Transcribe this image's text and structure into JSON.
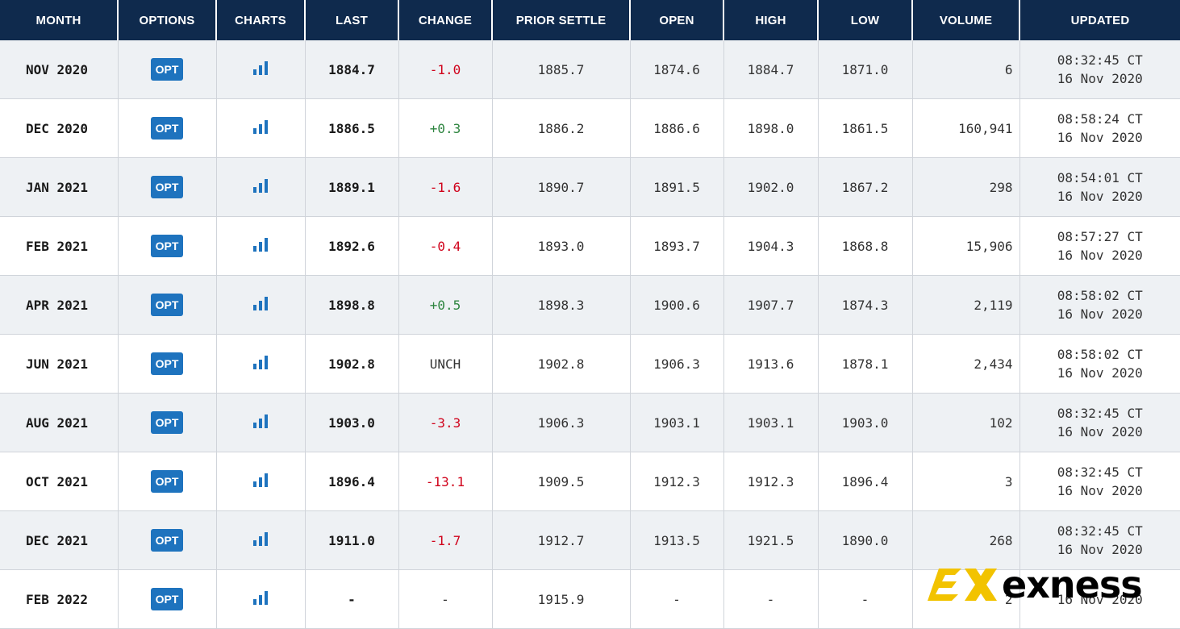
{
  "headers": {
    "month": "MONTH",
    "options": "OPTIONS",
    "charts": "CHARTS",
    "last": "LAST",
    "change": "CHANGE",
    "prior_settle": "PRIOR SETTLE",
    "open": "OPEN",
    "high": "HIGH",
    "low": "LOW",
    "volume": "VOLUME",
    "updated": "UPDATED"
  },
  "colors": {
    "header_bg": "#0f2a4d",
    "button": "#1e73be",
    "negative": "#d0021b",
    "positive": "#2e8540",
    "logo_accent": "#f2c300"
  },
  "icons": {
    "chart": "bar-chart-icon",
    "logo": "exness-logo"
  },
  "rows": [
    {
      "month": "NOV 2020",
      "opt": "OPT",
      "last": "1884.7",
      "change": "-1.0",
      "change_dir": "neg",
      "prior": "1885.7",
      "open": "1874.6",
      "high": "1884.7",
      "low": "1871.0",
      "volume": "6",
      "time": "08:32:45 CT",
      "date": "16 Nov 2020"
    },
    {
      "month": "DEC 2020",
      "opt": "OPT",
      "last": "1886.5",
      "change": "+0.3",
      "change_dir": "pos",
      "prior": "1886.2",
      "open": "1886.6",
      "high": "1898.0",
      "low": "1861.5",
      "volume": "160,941",
      "time": "08:58:24 CT",
      "date": "16 Nov 2020"
    },
    {
      "month": "JAN 2021",
      "opt": "OPT",
      "last": "1889.1",
      "change": "-1.6",
      "change_dir": "neg",
      "prior": "1890.7",
      "open": "1891.5",
      "high": "1902.0",
      "low": "1867.2",
      "volume": "298",
      "time": "08:54:01 CT",
      "date": "16 Nov 2020"
    },
    {
      "month": "FEB 2021",
      "opt": "OPT",
      "last": "1892.6",
      "change": "-0.4",
      "change_dir": "neg",
      "prior": "1893.0",
      "open": "1893.7",
      "high": "1904.3",
      "low": "1868.8",
      "volume": "15,906",
      "time": "08:57:27 CT",
      "date": "16 Nov 2020"
    },
    {
      "month": "APR 2021",
      "opt": "OPT",
      "last": "1898.8",
      "change": "+0.5",
      "change_dir": "pos",
      "prior": "1898.3",
      "open": "1900.6",
      "high": "1907.7",
      "low": "1874.3",
      "volume": "2,119",
      "time": "08:58:02 CT",
      "date": "16 Nov 2020"
    },
    {
      "month": "JUN 2021",
      "opt": "OPT",
      "last": "1902.8",
      "change": "UNCH",
      "change_dir": "unch",
      "prior": "1902.8",
      "open": "1906.3",
      "high": "1913.6",
      "low": "1878.1",
      "volume": "2,434",
      "time": "08:58:02 CT",
      "date": "16 Nov 2020"
    },
    {
      "month": "AUG 2021",
      "opt": "OPT",
      "last": "1903.0",
      "change": "-3.3",
      "change_dir": "neg",
      "prior": "1906.3",
      "open": "1903.1",
      "high": "1903.1",
      "low": "1903.0",
      "volume": "102",
      "time": "08:32:45 CT",
      "date": "16 Nov 2020"
    },
    {
      "month": "OCT 2021",
      "opt": "OPT",
      "last": "1896.4",
      "change": "-13.1",
      "change_dir": "neg",
      "prior": "1909.5",
      "open": "1912.3",
      "high": "1912.3",
      "low": "1896.4",
      "volume": "3",
      "time": "08:32:45 CT",
      "date": "16 Nov 2020"
    },
    {
      "month": "DEC 2021",
      "opt": "OPT",
      "last": "1911.0",
      "change": "-1.7",
      "change_dir": "neg",
      "prior": "1912.7",
      "open": "1913.5",
      "high": "1921.5",
      "low": "1890.0",
      "volume": "268",
      "time": "08:32:45 CT",
      "date": "16 Nov 2020"
    },
    {
      "month": "FEB 2022",
      "opt": "OPT",
      "last": "-",
      "change": "-",
      "change_dir": "unch",
      "prior": "1915.9",
      "open": "-",
      "high": "-",
      "low": "-",
      "volume": "2",
      "time": "",
      "date": "16 Nov 2020"
    }
  ],
  "watermark": {
    "brand": "exness"
  }
}
